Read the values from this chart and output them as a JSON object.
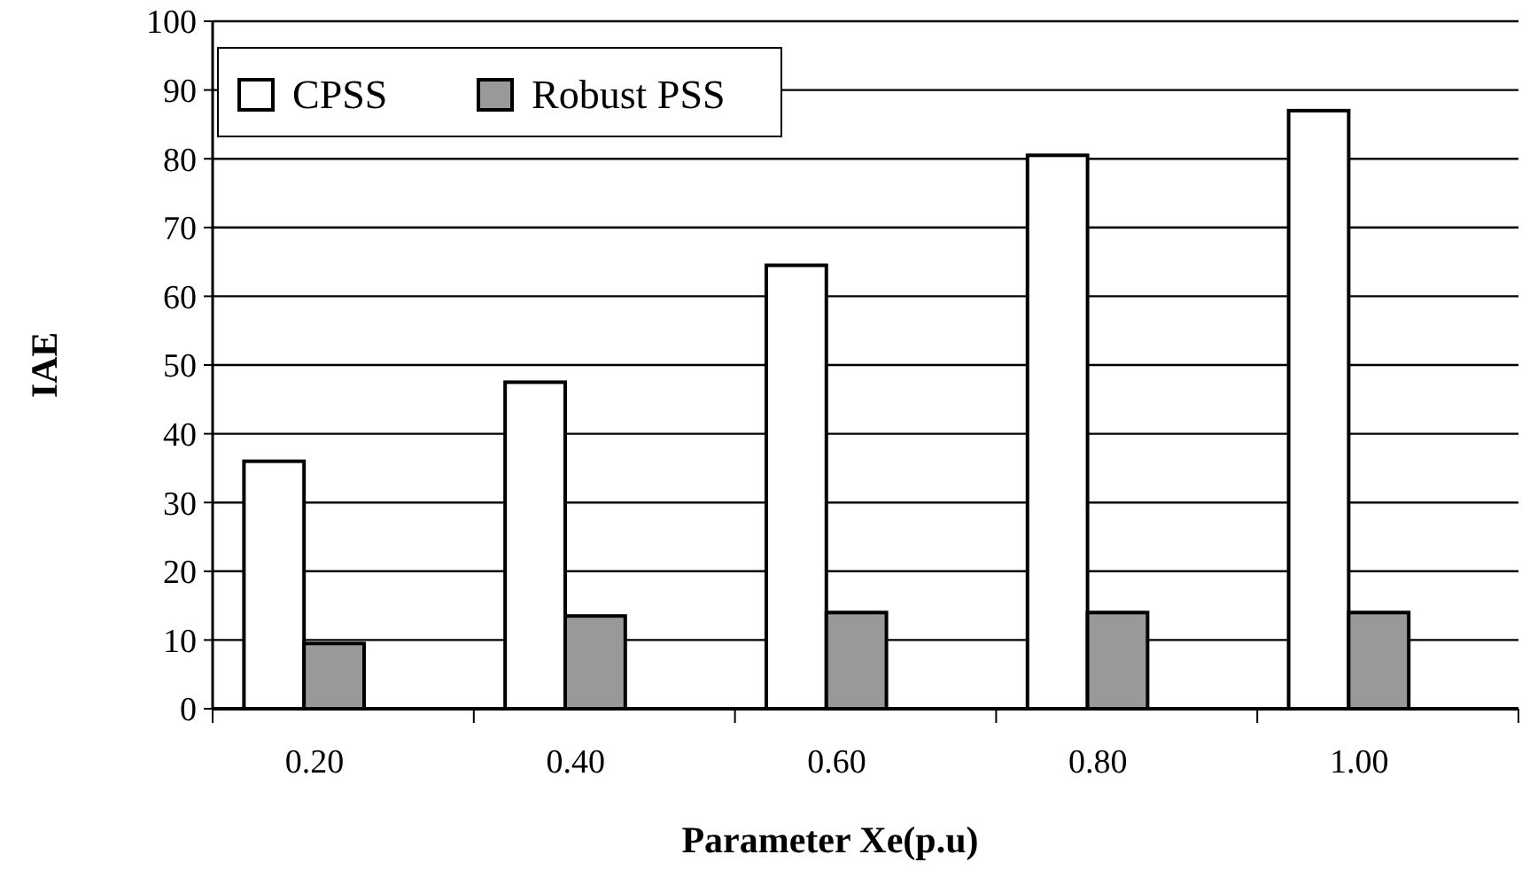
{
  "chart_data": {
    "type": "bar",
    "xlabel": "Parameter Xe(p.u)",
    "ylabel": "IAE",
    "categories": [
      "0.20",
      "0.40",
      "0.60",
      "0.80",
      "1.00"
    ],
    "series": [
      {
        "name": "CPSS",
        "color": "#ffffff",
        "values": [
          36,
          47.5,
          64.5,
          80.5,
          87
        ]
      },
      {
        "name": "Robust PSS",
        "color": "#999999",
        "values": [
          9.5,
          13.5,
          14,
          14,
          14
        ]
      }
    ],
    "ylim": [
      0,
      100
    ],
    "yticks": [
      0,
      10,
      20,
      30,
      40,
      50,
      60,
      70,
      80,
      90,
      100
    ],
    "grid": "y",
    "legend": "top left"
  }
}
